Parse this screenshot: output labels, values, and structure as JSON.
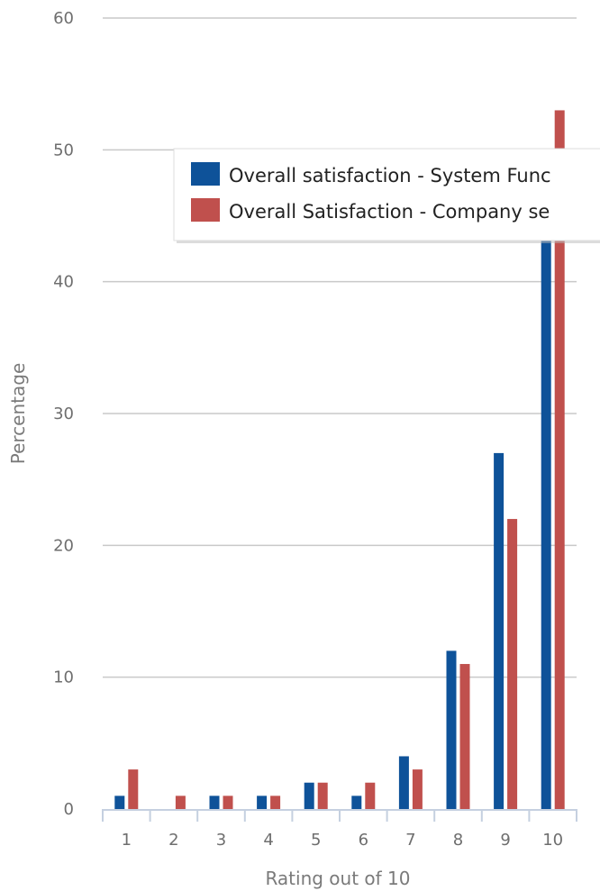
{
  "chart_data": {
    "type": "bar",
    "title": "",
    "xlabel": "Rating out of 10",
    "ylabel": "Percentage",
    "categories": [
      "1",
      "2",
      "3",
      "4",
      "5",
      "6",
      "7",
      "8",
      "9",
      "10"
    ],
    "ylim": [
      0,
      60
    ],
    "yticks": [
      0,
      10,
      20,
      30,
      40,
      50,
      60
    ],
    "grid": true,
    "legend_position": "top-right",
    "series": [
      {
        "name": "Overall satisfaction - System Func",
        "color": "#0e5299",
        "values": [
          1,
          0,
          1,
          1,
          2,
          1,
          4,
          12,
          27,
          44
        ]
      },
      {
        "name": "Overall Satisfaction - Company se",
        "color": "#c0504d",
        "values": [
          3,
          1,
          1,
          1,
          2,
          2,
          3,
          11,
          22,
          53
        ]
      }
    ]
  }
}
